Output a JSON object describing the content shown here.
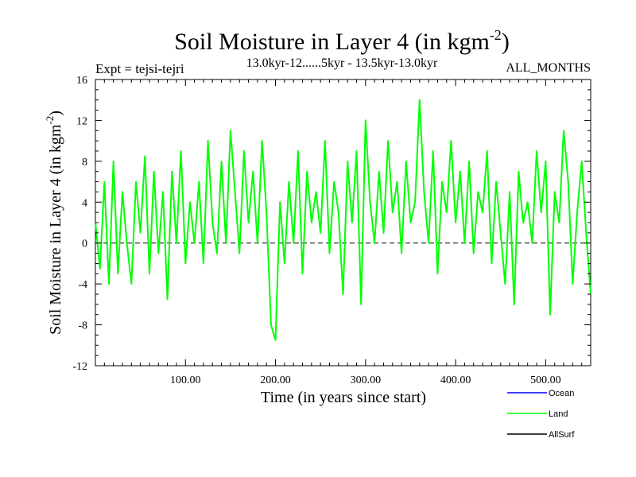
{
  "chart_data": {
    "type": "line",
    "title": "Soil Moisture in Layer 4 (in kgm",
    "title_superscript": "-2",
    "title_suffix": ")",
    "subtitle_left": "Expt = tejsi-tejri",
    "subtitle_center": "13.0kyr-12......5kyr - 13.5kyr-13.0kyr",
    "subtitle_right": "ALL_MONTHS",
    "xlabel": "Time (in years since start)",
    "ylabel": "Soil Moisture in Layer 4 (in kgm",
    "ylabel_superscript": "-2",
    "ylabel_suffix": ")",
    "xlim": [
      0,
      550
    ],
    "ylim": [
      -12,
      16
    ],
    "x_ticks": [
      100,
      200,
      300,
      400,
      500
    ],
    "x_tick_labels": [
      "100.00",
      "200.00",
      "300.00",
      "400.00",
      "500.00"
    ],
    "y_ticks": [
      -12,
      -8,
      -4,
      0,
      4,
      8,
      12,
      16
    ],
    "y_tick_labels": [
      "-12",
      "-8",
      "-4",
      "0",
      "4",
      "8",
      "12",
      "16"
    ],
    "reference_line": 0,
    "legend": [
      {
        "name": "Ocean",
        "color": "#0000ff"
      },
      {
        "name": "Land",
        "color": "#00ff00"
      },
      {
        "name": "AllSurf",
        "color": "#000000"
      }
    ],
    "series": [
      {
        "name": "Land",
        "color": "#00ff00",
        "x": [
          0,
          5,
          10,
          15,
          20,
          25,
          30,
          35,
          40,
          45,
          50,
          55,
          60,
          65,
          70,
          75,
          80,
          85,
          90,
          95,
          100,
          105,
          110,
          115,
          120,
          125,
          130,
          135,
          140,
          145,
          150,
          155,
          160,
          165,
          170,
          175,
          180,
          185,
          190,
          195,
          200,
          205,
          210,
          215,
          220,
          225,
          230,
          235,
          240,
          245,
          250,
          255,
          260,
          265,
          270,
          275,
          280,
          285,
          290,
          295,
          300,
          305,
          310,
          315,
          320,
          325,
          330,
          335,
          340,
          345,
          350,
          355,
          360,
          365,
          370,
          375,
          380,
          385,
          390,
          395,
          400,
          405,
          410,
          415,
          420,
          425,
          430,
          435,
          440,
          445,
          450,
          455,
          460,
          465,
          470,
          475,
          480,
          485,
          490,
          495,
          500,
          505,
          510,
          515,
          520,
          525,
          530,
          535,
          540,
          545,
          550
        ],
        "values": [
          2,
          -2.5,
          6,
          -4,
          8,
          -3,
          5,
          0,
          -4,
          6,
          1,
          8.5,
          -3,
          7,
          -1,
          5,
          -5.5,
          7,
          0,
          9,
          -2,
          4,
          0,
          6,
          -2,
          10,
          2,
          -1,
          8,
          0,
          11,
          5,
          -1,
          9,
          2,
          7,
          0,
          10,
          3,
          -8,
          -9.5,
          4,
          -2,
          6,
          0,
          9,
          -3,
          7,
          2,
          5,
          1,
          10,
          -1,
          6,
          3,
          -5,
          8,
          2,
          9,
          -6,
          12,
          4,
          0,
          7,
          1,
          10,
          3,
          6,
          -1,
          8,
          2,
          4,
          14,
          5,
          0,
          9,
          -3,
          6,
          3,
          10,
          2,
          7,
          0,
          8,
          -1,
          5,
          3,
          9,
          -2,
          6,
          1,
          -4,
          5,
          -6,
          7,
          2,
          4,
          0,
          9,
          3,
          8,
          -7,
          5,
          2,
          11,
          6,
          -4,
          3,
          8,
          1,
          -5
        ]
      }
    ]
  }
}
